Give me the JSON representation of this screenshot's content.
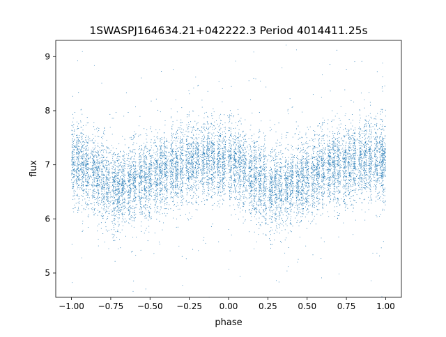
{
  "chart_data": {
    "type": "scatter",
    "title": "1SWASPJ164634.21+042222.3 Period 4014411.25s",
    "xlabel": "phase",
    "ylabel": "flux",
    "xlim": [
      -1.1,
      1.1
    ],
    "ylim": [
      4.55,
      9.3
    ],
    "xticks": [
      -1.0,
      -0.75,
      -0.5,
      -0.25,
      0.0,
      0.25,
      0.5,
      0.75,
      1.0
    ],
    "xtick_labels": [
      "−1.00",
      "−0.75",
      "−0.50",
      "−0.25",
      "0.00",
      "0.25",
      "0.50",
      "0.75",
      "1.00"
    ],
    "yticks": [
      5,
      6,
      7,
      8,
      9
    ],
    "ytick_labels": [
      "5",
      "6",
      "7",
      "8",
      "9"
    ],
    "grid": false,
    "legend": "none",
    "point_color": "#1f77b4",
    "series": [
      {
        "phase_profile": {
          "x": [
            -1.0,
            -0.95,
            -0.9,
            -0.85,
            -0.8,
            -0.75,
            -0.7,
            -0.65,
            -0.6,
            -0.55,
            -0.5,
            -0.45,
            -0.4,
            -0.35,
            -0.3,
            -0.25,
            -0.2,
            -0.15,
            -0.1,
            -0.05,
            0.0,
            0.05,
            0.1,
            0.15,
            0.2,
            0.25,
            0.3,
            0.35,
            0.4,
            0.45,
            0.5,
            0.55,
            0.6,
            0.65,
            0.7,
            0.75,
            0.8,
            0.85,
            0.9,
            0.95,
            1.0
          ],
          "median": [
            7.05,
            7.0,
            6.9,
            6.8,
            6.7,
            6.6,
            6.55,
            6.6,
            6.65,
            6.7,
            6.75,
            6.85,
            6.9,
            6.95,
            7.0,
            7.0,
            7.05,
            7.1,
            7.1,
            7.05,
            7.05,
            7.0,
            6.9,
            6.8,
            6.7,
            6.6,
            6.55,
            6.6,
            6.65,
            6.7,
            6.75,
            6.85,
            6.9,
            6.95,
            7.0,
            7.0,
            7.05,
            7.1,
            7.1,
            7.05,
            7.05
          ],
          "spread": [
            0.35,
            0.35,
            0.35,
            0.35,
            0.4,
            0.4,
            0.35,
            0.35,
            0.35,
            0.35,
            0.35,
            0.35,
            0.35,
            0.35,
            0.35,
            0.35,
            0.35,
            0.35,
            0.35,
            0.35,
            0.35,
            0.35,
            0.35,
            0.35,
            0.4,
            0.4,
            0.35,
            0.35,
            0.35,
            0.35,
            0.35,
            0.35,
            0.35,
            0.35,
            0.35,
            0.35,
            0.35,
            0.35,
            0.35,
            0.35,
            0.35
          ]
        },
        "observation_clusters_x": [
          -0.99,
          -0.96,
          -0.93,
          -0.9,
          -0.86,
          -0.83,
          -0.8,
          -0.77,
          -0.73,
          -0.7,
          -0.67,
          -0.63,
          -0.6,
          -0.56,
          -0.53,
          -0.5,
          -0.46,
          -0.43,
          -0.4,
          -0.36,
          -0.33,
          -0.3,
          -0.26,
          -0.23,
          -0.2,
          -0.16,
          -0.13,
          -0.1,
          -0.06,
          -0.03,
          0.01,
          0.04,
          0.07,
          0.1,
          0.14,
          0.17,
          0.2,
          0.23,
          0.27,
          0.3,
          0.33,
          0.37,
          0.4,
          0.44,
          0.47,
          0.5,
          0.54,
          0.57,
          0.6,
          0.64,
          0.67,
          0.7,
          0.74,
          0.77,
          0.8,
          0.84,
          0.87,
          0.9,
          0.94,
          0.97,
          0.99
        ]
      }
    ]
  }
}
